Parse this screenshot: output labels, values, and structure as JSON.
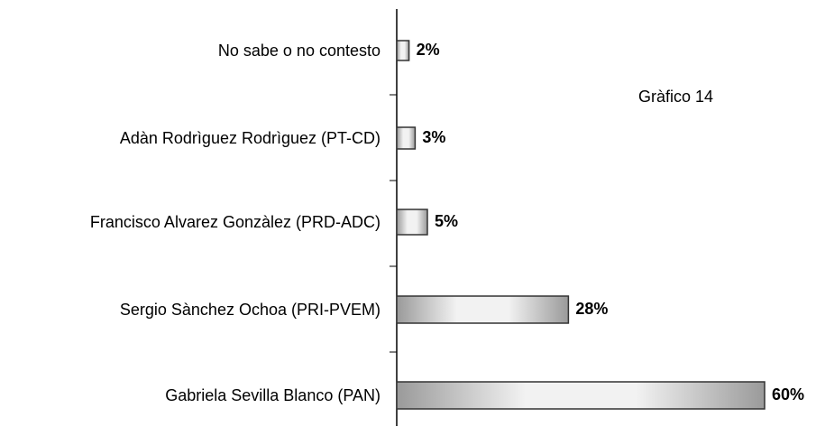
{
  "chart_data": {
    "type": "bar",
    "orientation": "horizontal",
    "annotation": "Gràfico 14",
    "categories": [
      "No sabe o no contesto",
      "Adàn Rodrìguez Rodrìguez (PT-CD)",
      "Francisco Alvarez Gonzàlez  (PRD-ADC)",
      "Sergio Sànchez Ochoa  (PRI-PVEM)",
      "Gabriela Sevilla Blanco (PAN)"
    ],
    "values": [
      2,
      3,
      5,
      28,
      60
    ],
    "value_labels": [
      "2%",
      "3%",
      "5%",
      "28%",
      "60%"
    ],
    "color": "#c8c8c8"
  }
}
